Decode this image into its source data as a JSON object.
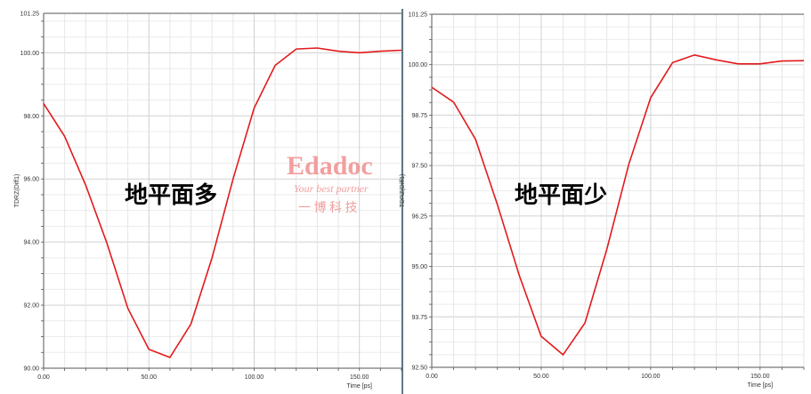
{
  "chart_data": [
    {
      "type": "line",
      "annotation": "地平面多",
      "xlabel": "Time [ps]",
      "ylabel": "TDRZ(Diff1)",
      "xlim": [
        0,
        170
      ],
      "ylim": [
        90,
        101.25
      ],
      "xticks": [
        "0.00",
        "50.00",
        "100.00",
        "150.00"
      ],
      "yticks": [
        "90.00",
        "92.00",
        "94.00",
        "96.00",
        "98.00",
        "100.00",
        "101.25"
      ],
      "grid": true,
      "color": "#e31a1c",
      "x": [
        0,
        10,
        20,
        30,
        40,
        50,
        60,
        70,
        80,
        90,
        100,
        110,
        120,
        130,
        140,
        150,
        160,
        170
      ],
      "y": [
        98.39,
        97.35,
        95.8,
        93.98,
        91.9,
        90.6,
        90.34,
        91.4,
        93.5,
        96.0,
        98.25,
        99.6,
        100.12,
        100.15,
        100.05,
        100.0,
        100.05,
        100.08
      ]
    },
    {
      "type": "line",
      "annotation": "地平面少",
      "xlabel": "Time [ps]",
      "ylabel": "TDRZ(Diff1)",
      "xlim": [
        0,
        170
      ],
      "ylim": [
        92.5,
        101.25
      ],
      "xticks": [
        "0.00",
        "50.00",
        "100.00",
        "150.00"
      ],
      "yticks": [
        "92.50",
        "93.75",
        "95.00",
        "96.25",
        "97.50",
        "98.75",
        "100.00",
        "101.25"
      ],
      "grid": true,
      "color": "#e31a1c",
      "x": [
        0,
        10,
        20,
        30,
        40,
        50,
        60,
        70,
        80,
        90,
        100,
        110,
        120,
        130,
        140,
        150,
        160,
        170
      ],
      "y": [
        99.44,
        99.07,
        98.15,
        96.53,
        94.77,
        93.27,
        92.81,
        93.6,
        95.43,
        97.53,
        99.18,
        100.05,
        100.24,
        100.12,
        100.02,
        100.02,
        100.09,
        100.1
      ]
    }
  ],
  "watermark": {
    "logo": "Edadoc",
    "slogan": "Your best partner",
    "chinese": "一 博 科 技"
  }
}
